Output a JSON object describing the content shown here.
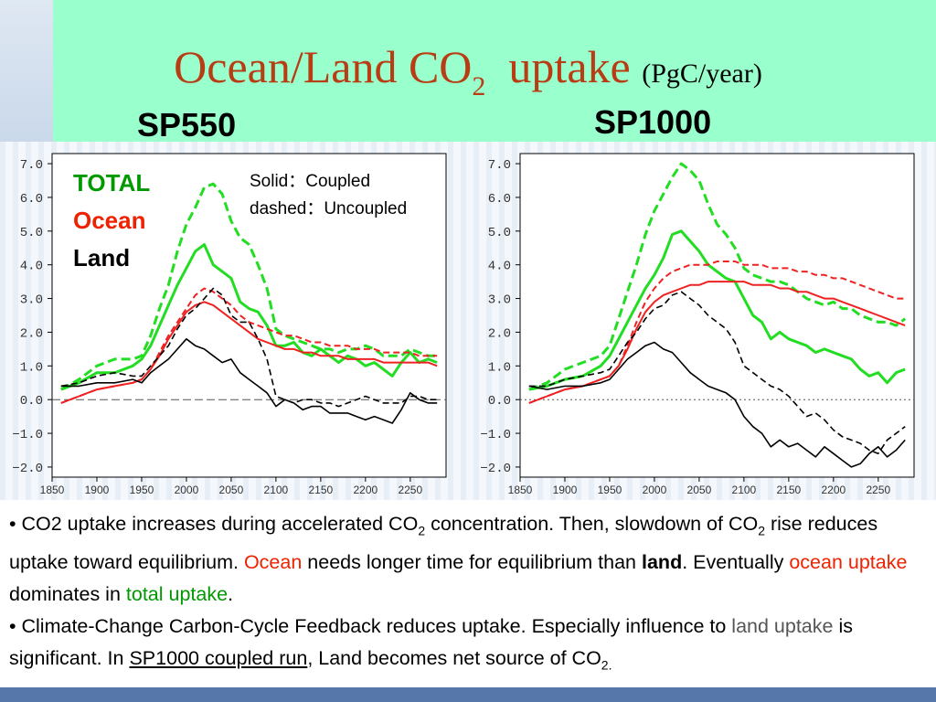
{
  "title": {
    "main": "Ocean/Land CO",
    "sub": "2",
    "tail": "uptake",
    "unit": "(PgC/year)"
  },
  "panels": {
    "left_label": "SP550",
    "right_label": "SP1000"
  },
  "legend": {
    "total": "TOTAL",
    "ocean": "Ocean",
    "land": "Land",
    "solid_note": "Solid：Coupled",
    "dashed_note": "dashed：Uncoupled"
  },
  "colors": {
    "total": "#22dd22",
    "ocean": "#ee2222",
    "land": "#000000",
    "title": "#b83c14",
    "band": "#99ffcc"
  },
  "bullets": {
    "b1": [
      "• CO2 uptake increases during accelerated CO",
      "2",
      " concentration. Then, slowdown of CO",
      "2",
      "  rise reduces uptake toward equilibrium. ",
      "Ocean",
      " needs longer time for equilibrium than ",
      "land",
      ". Eventually ",
      "ocean uptake",
      " dominates in ",
      "total uptake",
      "."
    ],
    "b2": [
      "•    Climate-Change Carbon-Cycle Feedback reduces uptake.  Especially influence to ",
      "land uptake",
      " is significant. In ",
      "SP1000 coupled run",
      ", Land becomes net source of CO",
      "2."
    ]
  },
  "chart_data": [
    {
      "type": "line",
      "panel": "SP550",
      "xlim": [
        1850,
        2290
      ],
      "ylim": [
        -2.3,
        7.3
      ],
      "xticks": [
        "1850",
        "1900",
        "1950",
        "2000",
        "2050",
        "2100",
        "2150",
        "2200",
        "2250"
      ],
      "yticks": [
        "7.0",
        "6.0",
        "5.0",
        "4.0",
        "3.0",
        "2.0",
        "1.0",
        "0.0",
        "−1.0",
        "−2.0"
      ],
      "zero_line": "dashed",
      "x": [
        1860,
        1880,
        1900,
        1920,
        1940,
        1950,
        1960,
        1970,
        1980,
        1990,
        2000,
        2010,
        2020,
        2030,
        2040,
        2050,
        2060,
        2070,
        2080,
        2090,
        2100,
        2110,
        2120,
        2130,
        2140,
        2150,
        2160,
        2170,
        2180,
        2190,
        2200,
        2210,
        2220,
        2230,
        2240,
        2250,
        2260,
        2270,
        2280
      ],
      "series": [
        {
          "name": "TOTAL",
          "style": "solid",
          "values": [
            0.3,
            0.5,
            0.8,
            0.8,
            1.0,
            1.2,
            1.6,
            2.2,
            2.8,
            3.4,
            3.9,
            4.4,
            4.6,
            4.0,
            3.8,
            3.6,
            2.9,
            2.7,
            2.6,
            2.2,
            1.6,
            1.6,
            1.7,
            1.4,
            1.3,
            1.5,
            1.3,
            1.1,
            1.3,
            1.2,
            1.0,
            1.1,
            0.9,
            0.7,
            1.1,
            1.4,
            1.1,
            1.2,
            1.1
          ]
        },
        {
          "name": "TOTAL",
          "style": "dashed",
          "values": [
            0.3,
            0.6,
            1.0,
            1.2,
            1.2,
            1.3,
            1.9,
            2.7,
            3.4,
            4.4,
            5.2,
            5.7,
            6.3,
            6.4,
            6.1,
            5.3,
            4.8,
            4.6,
            4.0,
            3.3,
            2.1,
            1.9,
            1.8,
            1.7,
            1.6,
            1.5,
            1.5,
            1.4,
            1.5,
            1.5,
            1.6,
            1.5,
            1.3,
            1.3,
            1.3,
            1.5,
            1.4,
            1.3,
            1.3
          ]
        },
        {
          "name": "Ocean",
          "style": "solid",
          "values": [
            -0.1,
            0.1,
            0.3,
            0.4,
            0.5,
            0.6,
            0.9,
            1.3,
            1.8,
            2.2,
            2.6,
            2.8,
            2.9,
            2.8,
            2.6,
            2.4,
            2.2,
            2.0,
            1.8,
            1.7,
            1.6,
            1.5,
            1.5,
            1.4,
            1.4,
            1.3,
            1.3,
            1.3,
            1.2,
            1.2,
            1.2,
            1.2,
            1.1,
            1.1,
            1.1,
            1.1,
            1.1,
            1.1,
            1.0
          ]
        },
        {
          "name": "Ocean",
          "style": "dashed",
          "values": [
            -0.1,
            0.1,
            0.3,
            0.4,
            0.5,
            0.6,
            0.9,
            1.4,
            1.9,
            2.3,
            2.7,
            3.1,
            3.3,
            3.2,
            3.0,
            2.8,
            2.5,
            2.3,
            2.2,
            2.1,
            2.0,
            1.9,
            1.9,
            1.8,
            1.7,
            1.7,
            1.6,
            1.6,
            1.6,
            1.5,
            1.5,
            1.5,
            1.4,
            1.4,
            1.4,
            1.4,
            1.3,
            1.3,
            1.3
          ]
        },
        {
          "name": "Land",
          "style": "solid",
          "values": [
            0.4,
            0.4,
            0.5,
            0.5,
            0.6,
            0.5,
            0.8,
            1.0,
            1.2,
            1.5,
            1.8,
            1.6,
            1.5,
            1.3,
            1.1,
            1.2,
            0.8,
            0.6,
            0.4,
            0.2,
            -0.2,
            0.0,
            -0.1,
            -0.3,
            -0.2,
            -0.2,
            -0.4,
            -0.4,
            -0.4,
            -0.5,
            -0.6,
            -0.5,
            -0.6,
            -0.7,
            -0.3,
            0.2,
            0.0,
            -0.1,
            -0.1
          ]
        },
        {
          "name": "Land",
          "style": "dashed",
          "values": [
            0.4,
            0.5,
            0.7,
            0.8,
            0.7,
            0.7,
            1.0,
            1.3,
            1.6,
            2.1,
            2.5,
            2.7,
            3.0,
            3.3,
            3.1,
            2.5,
            2.3,
            2.3,
            1.8,
            1.2,
            0.1,
            0.0,
            -0.1,
            0.0,
            0.0,
            -0.1,
            -0.1,
            -0.2,
            -0.1,
            0.0,
            0.1,
            0.0,
            -0.1,
            -0.1,
            -0.1,
            0.1,
            0.1,
            0.0,
            0.0
          ]
        }
      ]
    },
    {
      "type": "line",
      "panel": "SP1000",
      "xlim": [
        1850,
        2290
      ],
      "ylim": [
        -2.3,
        7.3
      ],
      "xticks": [
        "1850",
        "1900",
        "1950",
        "2000",
        "2050",
        "2100",
        "2150",
        "2200",
        "2250"
      ],
      "yticks": [
        "7.0",
        "6.0",
        "5.0",
        "4.0",
        "3.0",
        "2.0",
        "1.0",
        "0.0",
        "−1.0",
        "−2.0"
      ],
      "zero_line": "dotted",
      "x": [
        1860,
        1880,
        1900,
        1920,
        1940,
        1950,
        1960,
        1970,
        1980,
        1990,
        2000,
        2010,
        2020,
        2030,
        2040,
        2050,
        2060,
        2070,
        2080,
        2090,
        2100,
        2110,
        2120,
        2130,
        2140,
        2150,
        2160,
        2170,
        2180,
        2190,
        2200,
        2210,
        2220,
        2230,
        2240,
        2250,
        2260,
        2270,
        2280
      ],
      "series": [
        {
          "name": "TOTAL",
          "style": "solid",
          "values": [
            0.3,
            0.4,
            0.6,
            0.7,
            1.0,
            1.3,
            1.8,
            2.3,
            2.8,
            3.3,
            3.7,
            4.2,
            4.9,
            5.0,
            4.7,
            4.4,
            4.0,
            3.8,
            3.6,
            3.5,
            3.0,
            2.5,
            2.3,
            1.8,
            2.0,
            1.8,
            1.7,
            1.6,
            1.4,
            1.5,
            1.4,
            1.3,
            1.2,
            0.9,
            0.7,
            0.8,
            0.5,
            0.8,
            0.9
          ]
        },
        {
          "name": "TOTAL",
          "style": "dashed",
          "values": [
            0.3,
            0.5,
            0.9,
            1.1,
            1.3,
            1.6,
            2.4,
            3.2,
            4.0,
            4.9,
            5.6,
            6.1,
            6.6,
            7.0,
            6.8,
            6.5,
            5.8,
            5.2,
            4.9,
            4.5,
            3.9,
            3.7,
            3.6,
            3.5,
            3.5,
            3.4,
            3.2,
            3.0,
            2.9,
            2.8,
            2.9,
            2.7,
            2.7,
            2.5,
            2.4,
            2.3,
            2.3,
            2.2,
            2.4
          ]
        },
        {
          "name": "Ocean",
          "style": "solid",
          "values": [
            -0.1,
            0.1,
            0.3,
            0.4,
            0.6,
            0.7,
            1.0,
            1.5,
            2.1,
            2.6,
            2.9,
            3.1,
            3.2,
            3.3,
            3.4,
            3.4,
            3.5,
            3.5,
            3.5,
            3.5,
            3.5,
            3.4,
            3.4,
            3.4,
            3.3,
            3.3,
            3.2,
            3.2,
            3.1,
            3.0,
            3.0,
            2.9,
            2.8,
            2.7,
            2.6,
            2.5,
            2.4,
            2.3,
            2.2
          ]
        },
        {
          "name": "Ocean",
          "style": "dashed",
          "values": [
            -0.1,
            0.1,
            0.3,
            0.4,
            0.6,
            0.7,
            1.0,
            1.6,
            2.3,
            2.9,
            3.3,
            3.6,
            3.8,
            3.9,
            4.0,
            4.0,
            4.0,
            4.1,
            4.1,
            4.1,
            4.0,
            4.0,
            4.0,
            3.9,
            3.9,
            3.9,
            3.8,
            3.8,
            3.7,
            3.7,
            3.6,
            3.6,
            3.5,
            3.4,
            3.3,
            3.2,
            3.1,
            3.0,
            3.0
          ]
        },
        {
          "name": "Land",
          "style": "solid",
          "values": [
            0.4,
            0.3,
            0.4,
            0.4,
            0.5,
            0.6,
            0.9,
            1.2,
            1.4,
            1.6,
            1.7,
            1.5,
            1.4,
            1.1,
            0.8,
            0.6,
            0.4,
            0.3,
            0.2,
            0.0,
            -0.5,
            -0.8,
            -1.0,
            -1.4,
            -1.2,
            -1.4,
            -1.3,
            -1.5,
            -1.7,
            -1.4,
            -1.6,
            -1.8,
            -2.0,
            -1.9,
            -1.6,
            -1.4,
            -1.7,
            -1.5,
            -1.2
          ]
        },
        {
          "name": "Land",
          "style": "dashed",
          "values": [
            0.4,
            0.4,
            0.6,
            0.7,
            0.8,
            0.9,
            1.3,
            1.7,
            2.0,
            2.4,
            2.7,
            2.8,
            3.1,
            3.2,
            3.0,
            2.8,
            2.5,
            2.3,
            2.1,
            1.7,
            1.0,
            0.8,
            0.6,
            0.4,
            0.3,
            0.1,
            -0.2,
            -0.5,
            -0.4,
            -0.6,
            -0.9,
            -1.1,
            -1.2,
            -1.3,
            -1.5,
            -1.6,
            -1.2,
            -1.0,
            -0.8
          ]
        }
      ]
    }
  ]
}
